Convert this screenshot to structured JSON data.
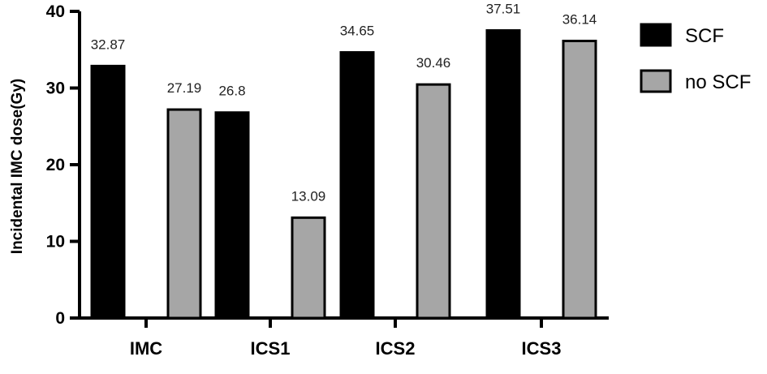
{
  "chart_data": {
    "type": "bar",
    "categories": [
      "IMC",
      "ICS1",
      "ICS2",
      "ICS3"
    ],
    "series": [
      {
        "name": "SCF",
        "values": [
          32.87,
          26.8,
          34.65,
          37.51
        ],
        "color": "#000000"
      },
      {
        "name": "no SCF",
        "values": [
          27.19,
          13.09,
          30.46,
          36.14
        ],
        "color": "#a6a6a6"
      }
    ],
    "data_labels": [
      [
        "32.87",
        "26.8",
        "34.65",
        "37.51"
      ],
      [
        "27.19",
        "13.09",
        "30.46",
        "36.14"
      ]
    ],
    "ylabel": "Incidental IMC dose(Gy)",
    "xlabel": "",
    "ylim": [
      0,
      40
    ],
    "yticks": [
      0,
      10,
      20,
      30,
      40
    ],
    "grid": false,
    "legend_position": "top-right"
  }
}
